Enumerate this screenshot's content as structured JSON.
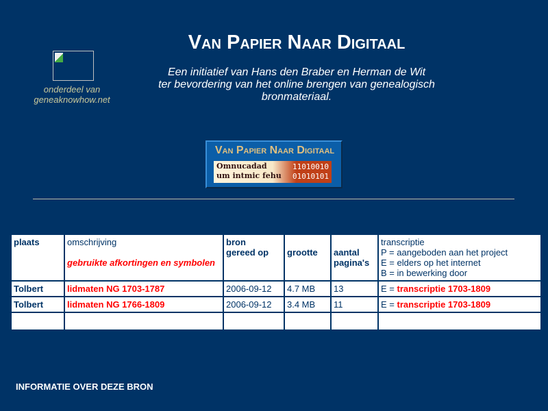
{
  "header": {
    "title": "Van Papier Naar Digitaal",
    "subtitle_lines": [
      "Een initiatief van Hans den Braber en Herman de Wit",
      "ter bevordering van het online brengen van genealogisch",
      "bronmateriaal."
    ],
    "partner_lines": [
      "onderdeel van",
      "geneaknowhow.net"
    ],
    "banner": {
      "title": "Van Papier Naar Digitaal",
      "gothic_lines": [
        "Omnucadad",
        "um intmic fehu"
      ],
      "binary_lines": [
        "11010010",
        "01010101"
      ]
    }
  },
  "table": {
    "headers": {
      "plaats": "plaats",
      "omschrijving": "omschrijving",
      "afkortingen_link": "gebruikte afkortingen en symbolen",
      "bron_lines": [
        "bron",
        "gereed op"
      ],
      "grootte": "grootte",
      "aantal_lines": [
        "aantal",
        "pagina's"
      ],
      "transcriptie": "transcriptie",
      "legend": [
        "P = aangeboden aan het project",
        "E = elders op het internet",
        "B = in bewerking door"
      ]
    },
    "rows": [
      {
        "plaats": "Tolbert",
        "omschrijving": "lidmaten NG 1703-1787",
        "gereed": "2006-09-12",
        "grootte": "4.7 MB",
        "paginas": "13",
        "prefix": "E = ",
        "transcriptie": "transcriptie 1703-1809"
      },
      {
        "plaats": "Tolbert",
        "omschrijving": "lidmaten NG 1766-1809",
        "gereed": "2006-09-12",
        "grootte": "3.4 MB",
        "paginas": "11",
        "prefix": "E = ",
        "transcriptie": "transcriptie 1703-1809"
      }
    ]
  },
  "footer": {
    "info_link": "INFORMATIE OVER DEZE BRON"
  },
  "colors": {
    "background": "#003366",
    "link": "#ff0000",
    "partner_text": "#c8c89a"
  }
}
